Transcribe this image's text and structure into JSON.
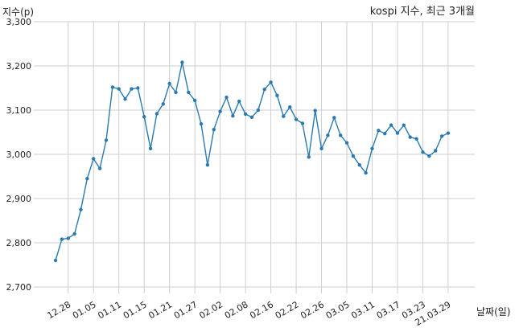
{
  "chart_data": {
    "type": "line",
    "title": "kospi 지수, 최근 3개월",
    "xlabel": "날짜(일)",
    "ylabel": "지수(p)",
    "ylim": [
      2700,
      3300
    ],
    "yticks": [
      2700,
      2800,
      2900,
      3000,
      3100,
      3200,
      3300
    ],
    "ytick_labels": [
      "2,700",
      "2,800",
      "2,900",
      "3,000",
      "3,100",
      "3,200",
      "3,300"
    ],
    "grid": true,
    "color": "#2a7ab0",
    "x": [
      "12.23",
      "12.24",
      "12.28",
      "12.29",
      "12.30",
      "01.04",
      "01.05",
      "01.06",
      "01.07",
      "01.08",
      "01.11",
      "01.12",
      "01.13",
      "01.14",
      "01.15",
      "01.18",
      "01.19",
      "01.20",
      "01.21",
      "01.22",
      "01.25",
      "01.26",
      "01.27",
      "01.28",
      "01.29",
      "02.01",
      "02.02",
      "02.03",
      "02.04",
      "02.05",
      "02.08",
      "02.09",
      "02.10",
      "02.15",
      "02.16",
      "02.17",
      "02.18",
      "02.19",
      "02.22",
      "02.23",
      "02.24",
      "02.25",
      "02.26",
      "03.02",
      "03.03",
      "03.04",
      "03.05",
      "03.08",
      "03.09",
      "03.10",
      "03.11",
      "03.12",
      "03.15",
      "03.16",
      "03.17",
      "03.18",
      "03.19",
      "03.22",
      "03.23",
      "03.24",
      "03.25",
      "03.26",
      "03.29"
    ],
    "values": [
      2760,
      2808,
      2810,
      2820,
      2875,
      2945,
      2990,
      2968,
      3032,
      3152,
      3148,
      3125,
      3148,
      3150,
      3085,
      3013,
      3092,
      3114,
      3160,
      3140,
      3208,
      3140,
      3122,
      3069,
      2976,
      3056,
      3097,
      3129,
      3087,
      3120,
      3091,
      3084,
      3100,
      3147,
      3163,
      3133,
      3086,
      3107,
      3079,
      3070,
      2994,
      3099,
      3013,
      3043,
      3083,
      3043,
      3026,
      2996,
      2976,
      2958,
      3013,
      3054,
      3047,
      3066,
      3048,
      3066,
      3039,
      3035,
      3005,
      2996,
      3008,
      3041,
      3048
    ],
    "xticks": [
      "12.28",
      "01.05",
      "01.11",
      "01.15",
      "01.21",
      "01.27",
      "02.02",
      "02.08",
      "02.16",
      "02.22",
      "02.26",
      "03.05",
      "03.11",
      "03.17",
      "03.23",
      "21.03.29"
    ]
  }
}
